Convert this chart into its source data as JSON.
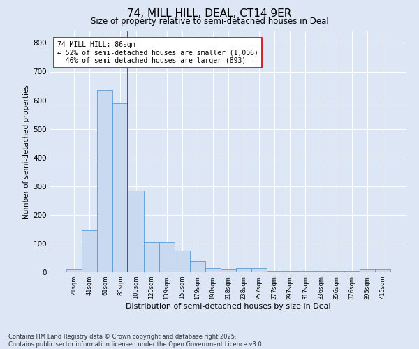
{
  "title": "74, MILL HILL, DEAL, CT14 9ER",
  "subtitle": "Size of property relative to semi-detached houses in Deal",
  "xlabel": "Distribution of semi-detached houses by size in Deal",
  "ylabel": "Number of semi-detached properties",
  "categories": [
    "21sqm",
    "41sqm",
    "61sqm",
    "80sqm",
    "100sqm",
    "120sqm",
    "139sqm",
    "159sqm",
    "179sqm",
    "198sqm",
    "218sqm",
    "238sqm",
    "257sqm",
    "277sqm",
    "297sqm",
    "317sqm",
    "336sqm",
    "356sqm",
    "376sqm",
    "395sqm",
    "415sqm"
  ],
  "values": [
    10,
    145,
    635,
    590,
    285,
    105,
    105,
    75,
    40,
    15,
    10,
    15,
    15,
    5,
    5,
    5,
    5,
    5,
    5,
    10,
    10
  ],
  "bar_color": "#c9d9f0",
  "bar_edge_color": "#5b9bd5",
  "background_color": "#dce6f5",
  "grid_color": "#ffffff",
  "vline_x_index": 3.5,
  "vline_color": "#cc0000",
  "annotation_line1": "74 MILL HILL: 86sqm",
  "annotation_line2": "← 52% of semi-detached houses are smaller (1,006)",
  "annotation_line3": "  46% of semi-detached houses are larger (893) →",
  "annotation_box_edge_color": "#cc0000",
  "footnote": "Contains HM Land Registry data © Crown copyright and database right 2025.\nContains public sector information licensed under the Open Government Licence v3.0.",
  "ylim": [
    0,
    840
  ],
  "yticks": [
    0,
    100,
    200,
    300,
    400,
    500,
    600,
    700,
    800
  ],
  "title_fontsize": 11,
  "subtitle_fontsize": 8.5,
  "ylabel_fontsize": 7.5,
  "xlabel_fontsize": 8,
  "xtick_fontsize": 6,
  "ytick_fontsize": 7.5,
  "annotation_fontsize": 7,
  "footnote_fontsize": 6
}
